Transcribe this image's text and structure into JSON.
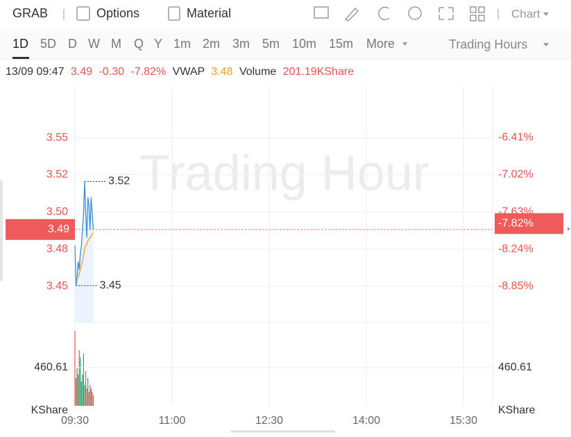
{
  "toolbar": {
    "symbol": "GRAB",
    "tabs": [
      "Options",
      "Material"
    ],
    "chart_menu": "Chart"
  },
  "timeframes": {
    "items": [
      "1D",
      "5D",
      "D",
      "W",
      "M",
      "Q",
      "Y",
      "1m",
      "2m",
      "3m",
      "5m",
      "10m",
      "15m",
      "More"
    ],
    "selected": 0,
    "session": "Trading Hours"
  },
  "quote": {
    "time": "13/09 09:47",
    "price": "3.49",
    "change": "-0.30",
    "change_pct": "-7.82%",
    "vwap_label": "VWAP",
    "vwap": "3.48",
    "volume_label": "Volume",
    "volume": "201.19KShare"
  },
  "chart_data": {
    "type": "line",
    "watermark": "Trading Hour",
    "x": [
      0,
      1,
      2,
      3,
      4,
      5,
      6,
      7,
      8,
      9,
      10,
      11,
      12,
      13,
      14,
      15,
      16,
      17
    ],
    "xlim": [
      0,
      387
    ],
    "xticks": [
      {
        "value": 0,
        "label": "09:30"
      },
      {
        "value": 90,
        "label": "11:00"
      },
      {
        "value": 180,
        "label": "12:30"
      },
      {
        "value": 270,
        "label": "14:00"
      },
      {
        "value": 360,
        "label": "15:30"
      }
    ],
    "series": [
      {
        "color": "#3a8fd8",
        "values": [
          3.48,
          3.455,
          3.46,
          3.47,
          3.465,
          3.475,
          3.48,
          3.49,
          3.5,
          3.52,
          3.5,
          3.485,
          3.51,
          3.505,
          3.49,
          3.51,
          3.5,
          3.49
        ]
      },
      {
        "color": "#f39c12",
        "values": [
          null,
          null,
          null,
          3.46,
          3.462,
          3.465,
          3.468,
          3.47,
          3.474,
          3.478,
          3.48,
          3.481,
          3.483,
          3.484,
          3.485,
          3.486,
          3.487,
          3.488
        ]
      }
    ],
    "ylim": [
      3.432,
      3.579
    ],
    "yticks": [
      {
        "value": 3.4546,
        "label": "3.45"
      },
      {
        "value": 3.4777,
        "label": "3.48"
      },
      {
        "value": 3.5008,
        "label": "3.50"
      },
      {
        "value": 3.5242,
        "label": "3.52"
      },
      {
        "value": 3.5471,
        "label": "3.55"
      }
    ],
    "y2lim": [
      -9.44,
      -5.58
    ],
    "y2ticks": [
      {
        "value": -8.85,
        "label": "-8.85%"
      },
      {
        "value": -8.24,
        "label": "-8.24%"
      },
      {
        "value": -7.63,
        "label": "-7.63%"
      },
      {
        "value": -7.02,
        "label": "-7.02%"
      },
      {
        "value": -6.41,
        "label": "-6.41%"
      }
    ],
    "axis_color": "#e8524f",
    "last": {
      "value": 3.49,
      "label": "3.49"
    },
    "last_pct": {
      "value": -7.82,
      "label": "-7.82%"
    },
    "high_label": "3.52",
    "low_label": "3.45",
    "volume": {
      "values": [
        904,
        335,
        460,
        377,
        670,
        586,
        293,
        377,
        628,
        251,
        419,
        209,
        335,
        168,
        251,
        209,
        168,
        126
      ],
      "up_color": "#e8524f",
      "down_color": "#22a06b",
      "ylim": [
        0,
        1005
      ],
      "yticks": [
        {
          "value": 460.61,
          "label": "460.61"
        }
      ],
      "unit": "KShare"
    }
  }
}
